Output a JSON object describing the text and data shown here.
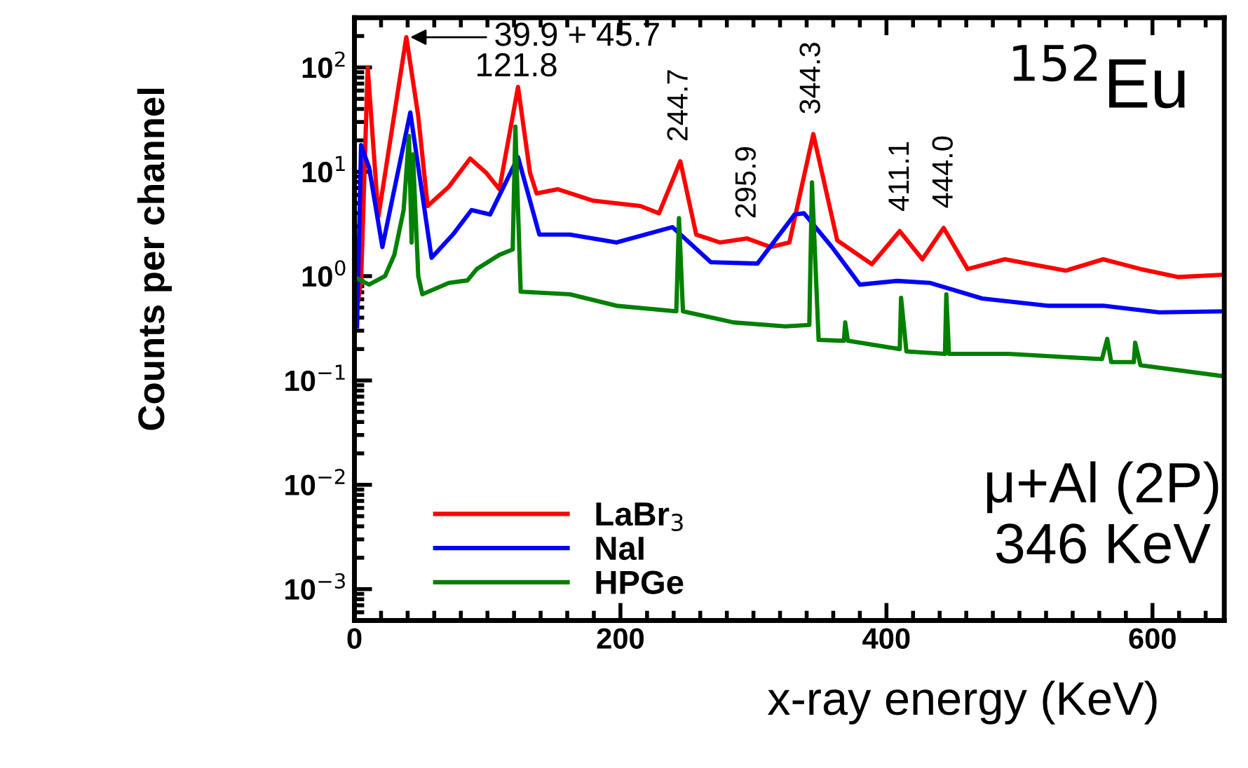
{
  "chart_data": {
    "type": "line",
    "xlabel": "x-ray energy (KeV)",
    "ylabel": "Counts per channel",
    "log": "y",
    "xlim": [
      0,
      654
    ],
    "ylim": [
      0.0005,
      300
    ],
    "xticks": [
      0,
      200,
      400,
      600
    ],
    "yticks": [
      {
        "value": 0.001,
        "label": "10$^{−3}$"
      },
      {
        "value": 0.01,
        "label": "10$^{−2}$"
      },
      {
        "value": 0.1,
        "label": "10$^{−1}$"
      },
      {
        "value": 1,
        "label": "10$^{0}$"
      },
      {
        "value": 10,
        "label": "10$^{1}$"
      },
      {
        "value": 100,
        "label": "10$^{2}$"
      }
    ],
    "grid": false,
    "legend": "bottom left",
    "marker": "none",
    "line_style": "solid",
    "series": [
      {
        "name": "LaBr$_{3}$",
        "color": "#ff0000",
        "x": [
          2,
          5,
          10,
          18,
          39,
          48,
          55,
          71,
          87,
          99,
          109,
          123,
          132,
          137,
          153,
          179,
          215,
          229,
          245,
          257,
          275,
          295,
          313,
          327,
          345,
          363,
          389,
          410,
          427,
          443,
          461,
          489,
          535,
          563,
          591,
          619,
          653
        ],
        "values": [
          0.5,
          0.9,
          100,
          3.7,
          195,
          34,
          4.7,
          7.2,
          13.4,
          9.8,
          6.8,
          65,
          9.8,
          6.2,
          6.8,
          5.3,
          4.7,
          4.0,
          12.6,
          2.5,
          2.1,
          2.3,
          1.9,
          2.1,
          23,
          2.2,
          1.3,
          2.7,
          1.45,
          2.9,
          1.17,
          1.45,
          1.13,
          1.45,
          1.17,
          0.98,
          1.03
        ]
      },
      {
        "name": "NaI",
        "color": "#0000ff",
        "x": [
          2,
          5,
          11,
          21,
          42,
          58,
          74,
          88,
          102,
          123,
          139,
          162,
          197,
          239,
          268,
          303,
          331,
          338,
          359,
          380,
          408,
          433,
          472,
          521,
          563,
          605,
          653
        ],
        "values": [
          0.33,
          18,
          11,
          1.9,
          37,
          1.5,
          2.5,
          4.3,
          3.9,
          13.8,
          2.5,
          2.5,
          2.1,
          2.95,
          1.36,
          1.32,
          3.9,
          4.0,
          1.9,
          0.83,
          0.9,
          0.86,
          0.61,
          0.52,
          0.52,
          0.45,
          0.46
        ]
      },
      {
        "name": "HPGe",
        "color": "#008000",
        "x": [
          2,
          11,
          23,
          30,
          37,
          41,
          43,
          44,
          48,
          51,
          71,
          85,
          92,
          109,
          119,
          121,
          125,
          162,
          197,
          242,
          244,
          247,
          285,
          324,
          342,
          344,
          349,
          368,
          369,
          371,
          410,
          411,
          415,
          444,
          445,
          447,
          492,
          562,
          566,
          569,
          586,
          587,
          591,
          653
        ],
        "values": [
          0.95,
          0.83,
          1.0,
          1.6,
          4.3,
          22,
          2.1,
          14.7,
          1.0,
          0.67,
          0.86,
          0.91,
          1.17,
          1.6,
          1.8,
          27,
          0.71,
          0.67,
          0.52,
          0.46,
          3.6,
          0.46,
          0.36,
          0.33,
          0.34,
          7.9,
          0.245,
          0.24,
          0.36,
          0.24,
          0.2,
          0.62,
          0.19,
          0.18,
          0.67,
          0.18,
          0.18,
          0.16,
          0.25,
          0.15,
          0.15,
          0.23,
          0.14,
          0.11
        ]
      }
    ],
    "annotations": [
      {
        "text": "39.9 + 45.7",
        "x": 39,
        "y": 195
      },
      {
        "text": "121.8",
        "x": 121.8,
        "y": 65
      },
      {
        "text": "244.7",
        "x": 244.7,
        "y": 12.6
      },
      {
        "text": "295.9",
        "x": 295.9,
        "y": 2.3
      },
      {
        "text": "344.3",
        "x": 344.3,
        "y": 23
      },
      {
        "text": "411.1",
        "x": 411.1,
        "y": 2.7
      },
      {
        "text": "444.0",
        "x": 444.0,
        "y": 2.9
      },
      "$^{152}$Eu",
      "μ+Al (2P)\n346 KeV"
    ]
  }
}
